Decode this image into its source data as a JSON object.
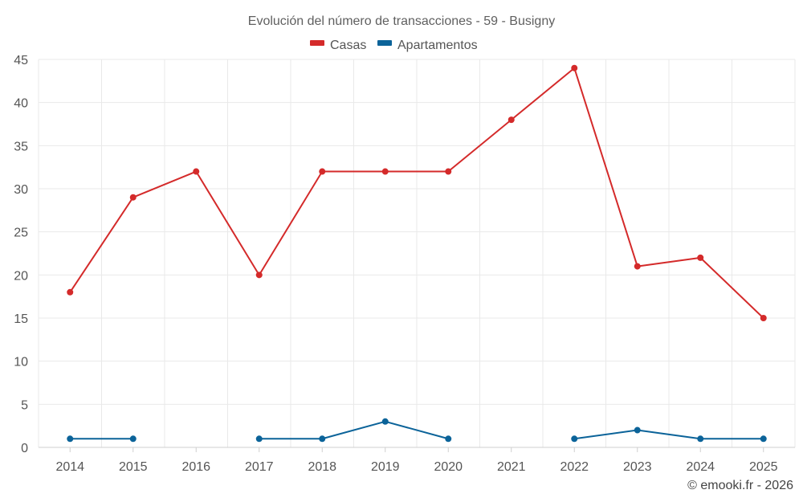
{
  "chart_data": {
    "type": "line",
    "title": "Evolución del número de transacciones - 59 - Busigny",
    "categories": [
      "2014",
      "2015",
      "2016",
      "2017",
      "2018",
      "2019",
      "2020",
      "2021",
      "2022",
      "2023",
      "2024",
      "2025"
    ],
    "ylim": [
      0,
      45
    ],
    "yticks": [
      0,
      5,
      10,
      15,
      20,
      25,
      30,
      35,
      40,
      45
    ],
    "grid": true,
    "legend_position": "top-center",
    "series": [
      {
        "name": "Casas",
        "color": "#d42a2a",
        "values": [
          18,
          29,
          32,
          20,
          32,
          32,
          32,
          38,
          44,
          21,
          22,
          15
        ]
      },
      {
        "name": "Apartamentos",
        "color": "#0b6399",
        "values": [
          1,
          1,
          null,
          1,
          1,
          3,
          1,
          null,
          1,
          2,
          1,
          1
        ]
      }
    ]
  },
  "credit": "© emooki.fr - 2026"
}
